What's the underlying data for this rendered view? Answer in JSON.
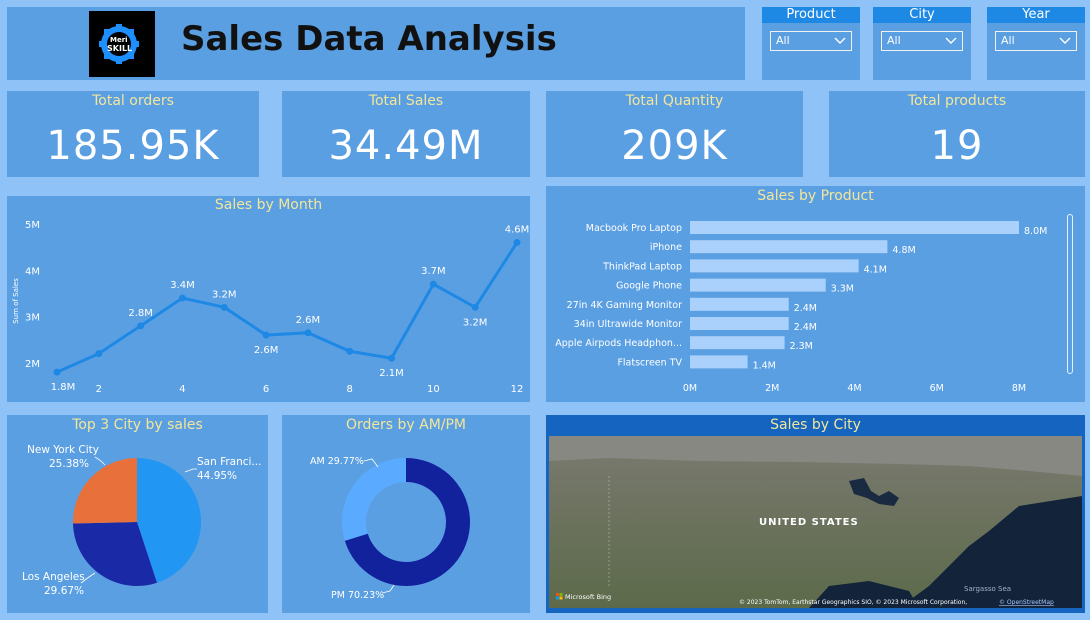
{
  "header": {
    "title": "Sales Data Analysis",
    "logo_text_top": "Meri",
    "logo_text_bottom": "SKILL"
  },
  "slicers": [
    {
      "label": "Product",
      "value": "All"
    },
    {
      "label": "City",
      "value": "All"
    },
    {
      "label": "Year",
      "value": "All"
    }
  ],
  "kpis": [
    {
      "label": "Total orders",
      "value": "185.95K"
    },
    {
      "label": "Total Sales",
      "value": "34.49M"
    },
    {
      "label": "Total Quantity",
      "value": "209K"
    },
    {
      "label": "Total products",
      "value": "19"
    }
  ],
  "panels": {
    "sales_by_month": "Sales by Month",
    "sales_by_product": "Sales by Product",
    "top_city": "Top 3 City by sales",
    "orders_ampm": "Orders by AM/PM",
    "sales_by_city": "Sales by City"
  },
  "map": {
    "country_label": "UNITED STATES",
    "sea_label": "Sargasso Sea",
    "bing_label": "Microsoft Bing",
    "attribution": "© 2023 TomTom, Earthstar Geographics SIO, © 2023 Microsoft Corporation,",
    "osm_link": "© OpenStreetMap"
  },
  "colors": {
    "background": "#8fc3f7",
    "panel": "#5b9fe3",
    "title": "#f2e69a",
    "line": "#1e88e5",
    "bar": "#a9d1fb",
    "pie_blue": "#2196f3",
    "pie_navy": "#1a2aa6",
    "pie_orange": "#e8703a",
    "donut_light": "#5aabff",
    "donut_navy": "#12219c"
  },
  "chart_data": [
    {
      "type": "line",
      "title": "Sales by Month",
      "ylabel": "Sum of Sales",
      "x": [
        1,
        2,
        3,
        4,
        5,
        6,
        7,
        8,
        9,
        10,
        11,
        12
      ],
      "values": [
        1.8,
        2.2,
        2.8,
        3.4,
        3.2,
        2.6,
        2.65,
        2.25,
        2.1,
        3.7,
        3.2,
        4.6
      ],
      "data_labels": {
        "1": "1.8M",
        "3": "2.8M",
        "4": "3.4M",
        "5": "3.2M",
        "6": "2.6M",
        "7": "2.6M",
        "9": "2.1M",
        "10": "3.7M",
        "11": "3.2M",
        "12": "4.6M"
      },
      "x_ticks": [
        "2",
        "4",
        "6",
        "8",
        "10",
        "12"
      ],
      "y_ticks": [
        "2M",
        "3M",
        "4M",
        "5M"
      ],
      "ylim": [
        1.5,
        5
      ]
    },
    {
      "type": "bar",
      "orientation": "horizontal",
      "title": "Sales by Product",
      "categories": [
        "Macbook Pro Laptop",
        "iPhone",
        "ThinkPad Laptop",
        "Google Phone",
        "27in 4K Gaming Monitor",
        "34in Ultrawide Monitor",
        "Apple Airpods Headphon...",
        "Flatscreen TV"
      ],
      "values": [
        8.0,
        4.8,
        4.1,
        3.3,
        2.4,
        2.4,
        2.3,
        1.4
      ],
      "value_labels": [
        "8.0M",
        "4.8M",
        "4.1M",
        "3.3M",
        "2.4M",
        "2.4M",
        "2.3M",
        "1.4M"
      ],
      "x_ticks": [
        "0M",
        "2M",
        "4M",
        "6M",
        "8M"
      ],
      "xlim": [
        0,
        8
      ]
    },
    {
      "type": "pie",
      "title": "Top 3 City by sales",
      "slices": [
        {
          "name": "San Franci...",
          "pct": "44.95%",
          "value": 44.95
        },
        {
          "name": "Los Angeles",
          "pct": "29.67%",
          "value": 29.67
        },
        {
          "name": "New York City",
          "pct": "25.38%",
          "value": 25.38
        }
      ]
    },
    {
      "type": "pie",
      "subtype": "donut",
      "title": "Orders by AM/PM",
      "slices": [
        {
          "name": "AM",
          "pct": "29.77%",
          "value": 29.77
        },
        {
          "name": "PM",
          "pct": "70.23%",
          "value": 70.23
        }
      ]
    }
  ]
}
